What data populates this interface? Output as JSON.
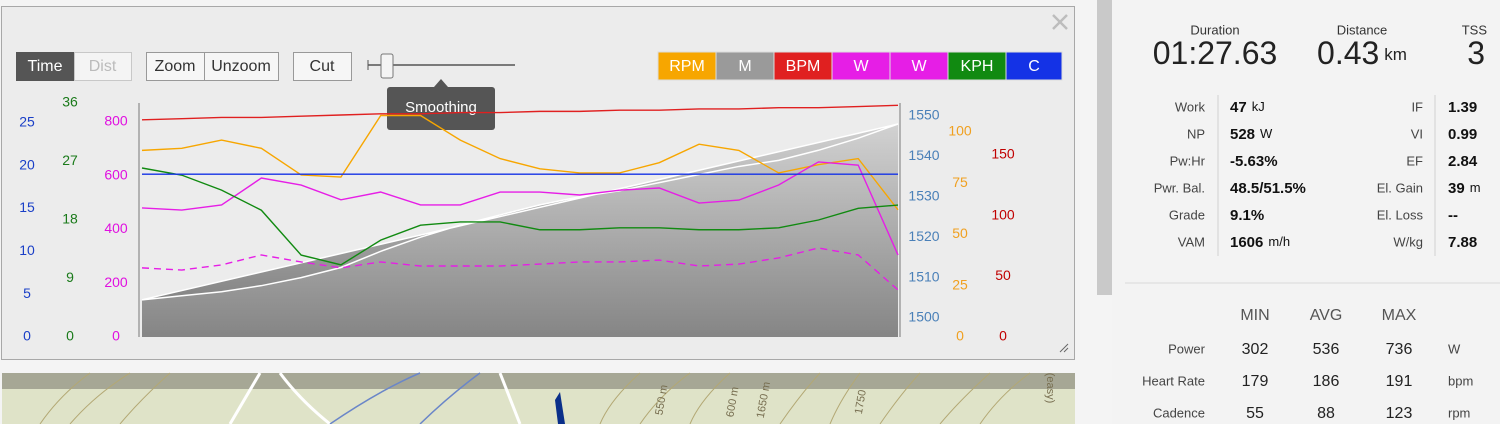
{
  "toolbar": {
    "buttons": [
      "Time",
      "Dist",
      "Zoom",
      "Unzoom",
      "Cut"
    ],
    "tooltip": "Smoothing"
  },
  "chart_data": {
    "type": "line",
    "categories": [
      null,
      null,
      null,
      null,
      null,
      null,
      null,
      null,
      null,
      null,
      null,
      null,
      null,
      null,
      null,
      null,
      null,
      null,
      null,
      null
    ],
    "axes": [
      {
        "color": "#1a3fc7",
        "ylim": [
          0,
          27.3
        ],
        "yticks": [
          0,
          5,
          10,
          15,
          20,
          25
        ]
      },
      {
        "color": "#1a7a1a",
        "ylim": [
          0,
          36
        ],
        "yticks": [
          0,
          9,
          18,
          27,
          36
        ]
      },
      {
        "color": "#e010e0",
        "ylim": [
          0,
          870
        ],
        "yticks": [
          0,
          200,
          400,
          600,
          800
        ]
      },
      {
        "color": "#4a80b8",
        "ylim": [
          1495.3,
          1553.2
        ],
        "yticks": [
          1500,
          1510,
          1520,
          1530,
          1540,
          1550
        ]
      },
      {
        "color": "#f0a020",
        "ylim": [
          0,
          114.1
        ],
        "yticks": [
          0,
          25,
          50,
          75,
          100
        ]
      },
      {
        "color": "#c00000",
        "ylim": [
          0,
          192.9
        ],
        "yticks": [
          0,
          50,
          100,
          150
        ]
      }
    ],
    "series": [
      {
        "name": "RPM",
        "color": "#f7a600",
        "axis": 4,
        "style": "line",
        "values": [
          91,
          92,
          96,
          92,
          79,
          78,
          108,
          108,
          96,
          87,
          82,
          80,
          80,
          85,
          94,
          91,
          80,
          84,
          87,
          62
        ]
      },
      {
        "name": "M",
        "color": "#9a9a9a",
        "axis": 3,
        "style": "area",
        "values": [
          1504.5,
          1505.5,
          1506.5,
          1508,
          1510,
          1512.5,
          1516.5,
          1520,
          1523,
          1525.5,
          1528,
          1530,
          1531.5,
          1533.5,
          1535.5,
          1537.5,
          1539,
          1541.5,
          1544.5,
          1548
        ]
      },
      {
        "name": "BPM",
        "color": "#e02020",
        "axis": 5,
        "style": "line",
        "values": [
          179,
          180,
          181,
          181,
          182,
          183,
          184,
          184,
          185,
          185,
          186,
          186,
          187,
          187,
          188,
          188,
          189,
          189,
          190,
          191
        ]
      },
      {
        "name": "W",
        "color": "#e61ee6",
        "axis": 2,
        "style": "line",
        "values": [
          480,
          472,
          491,
          591,
          565,
          510,
          539,
          491,
          491,
          539,
          539,
          528,
          546,
          554,
          498,
          509,
          565,
          651,
          639,
          305
        ]
      },
      {
        "name": "W",
        "color": "#e61ee6",
        "axis": 2,
        "style": "dashed",
        "values": [
          257,
          249,
          268,
          305,
          279,
          257,
          279,
          264,
          264,
          264,
          271,
          279,
          279,
          286,
          264,
          271,
          294,
          331,
          305,
          175
        ]
      },
      {
        "name": "KPH",
        "color": "#118a11",
        "axis": 1,
        "style": "line",
        "values": [
          26,
          24.9,
          22.6,
          19.5,
          12.6,
          11.1,
          14.9,
          17.2,
          17.7,
          17.7,
          16.5,
          16.5,
          16.8,
          16.8,
          16.5,
          16.5,
          16.8,
          18,
          19.8,
          20.3
        ]
      },
      {
        "name": "C",
        "color": "#1432e6",
        "axis": 0,
        "style": "line",
        "values": [
          19,
          19,
          19,
          19,
          19,
          19,
          19,
          19,
          19,
          19,
          19,
          19,
          19,
          19,
          19,
          19,
          19,
          19,
          19,
          19
        ]
      }
    ]
  },
  "summary": {
    "headers": [
      {
        "label": "Duration",
        "value": "01:27.63"
      },
      {
        "label": "Distance",
        "value": "0.43",
        "unit": "km"
      },
      {
        "label": "TSS",
        "value": "3"
      }
    ],
    "metrics": [
      {
        "label": "Work",
        "value": "47",
        "unit": "kJ"
      },
      {
        "label": "IF",
        "value": "1.39"
      },
      {
        "label": "NP",
        "value": "528",
        "unit": "W"
      },
      {
        "label": "VI",
        "value": "0.99"
      },
      {
        "label": "Pw:Hr",
        "value": "-5.63%"
      },
      {
        "label": "EF",
        "value": "2.84"
      },
      {
        "label": "Pwr. Bal.",
        "value": "48.5/51.5%"
      },
      {
        "label": "El. Gain",
        "value": "39",
        "unit": "m"
      },
      {
        "label": "Grade",
        "value": "9.1%"
      },
      {
        "label": "El. Loss",
        "value": "--"
      },
      {
        "label": "VAM",
        "value": "1606",
        "unit": "m/h"
      },
      {
        "label": "W/kg",
        "value": "7.88"
      }
    ]
  },
  "stats": {
    "columns": [
      "MIN",
      "AVG",
      "MAX"
    ],
    "rows": [
      {
        "label": "Power",
        "values": [
          "302",
          "536",
          "736"
        ],
        "unit": "W"
      },
      {
        "label": "Heart Rate",
        "values": [
          "179",
          "186",
          "191"
        ],
        "unit": "bpm"
      },
      {
        "label": "Cadence",
        "values": [
          "55",
          "88",
          "123"
        ],
        "unit": "rpm"
      }
    ]
  },
  "map": {
    "labels": [
      "550 m",
      "600 m",
      "1650 m",
      "1750",
      "(easy)"
    ]
  }
}
